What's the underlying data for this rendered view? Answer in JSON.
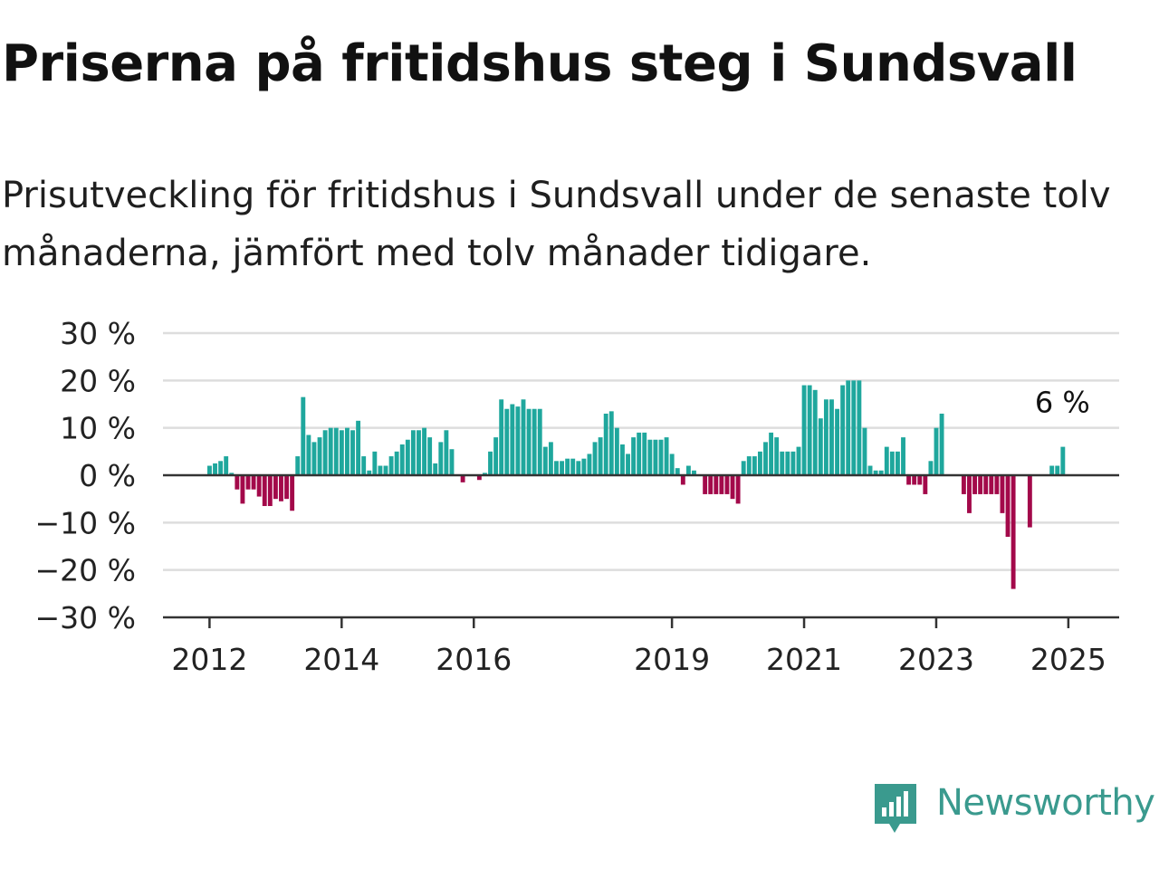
{
  "title": "Priserna på fritidshus steg i Sundsvall",
  "subtitle": "Prisutveckling för fritidshus i Sundsvall under de senaste tolv månaderna, jämfört med tolv månader tidigare.",
  "brand": {
    "name": "Newsworthy",
    "icon": "newsworthy-logo-icon",
    "color": "#3a9a8e"
  },
  "colors": {
    "positive": "#1fa79d",
    "negative": "#a3094a",
    "grid": "#dddddd",
    "axis": "#333333"
  },
  "chart_data": {
    "type": "bar",
    "title": "Priserna på fritidshus steg i Sundsvall",
    "xlabel": "",
    "ylabel": "",
    "ylim": [
      -30,
      30
    ],
    "grid": true,
    "y_ticks": [
      30,
      20,
      10,
      0,
      -10,
      -20,
      -30
    ],
    "y_tick_labels": [
      "30 %",
      "20 %",
      "10 %",
      "0 %",
      "−10 %",
      "−20 %",
      "−30 %"
    ],
    "x_ticks": [
      "2012",
      "2014",
      "2016",
      "2019",
      "2021",
      "2023",
      "2025"
    ],
    "x_tick_months": [
      "2012-01",
      "2014-01",
      "2016-01",
      "2019-01",
      "2021-01",
      "2023-01",
      "2025-01"
    ],
    "last_label": "6 %",
    "start_month": "2012-01",
    "values": [
      2,
      2.5,
      3,
      4,
      0.5,
      -3,
      -6,
      -3,
      -3,
      -4.5,
      -6.5,
      -6.5,
      -5,
      -5.5,
      -5,
      -7.5,
      4,
      16.5,
      8.5,
      7,
      8,
      9.5,
      10,
      10,
      9.5,
      10,
      9.5,
      11.5,
      4,
      1,
      5,
      2,
      2,
      4,
      5,
      6.5,
      7.5,
      9.5,
      9.5,
      10,
      8,
      2.5,
      7,
      9.5,
      5.5,
      0,
      -1.5,
      0,
      0,
      -1,
      0.5,
      5,
      8,
      16,
      14,
      15,
      14.5,
      16,
      14,
      14,
      14,
      6,
      7,
      3,
      3,
      3.5,
      3.5,
      3,
      3.5,
      4.5,
      7,
      8,
      13,
      13.5,
      10,
      6.5,
      4.5,
      8,
      9,
      9,
      7.5,
      7.5,
      7.5,
      8,
      4.5,
      1.5,
      -2,
      2,
      1,
      0,
      -4,
      -4,
      -4,
      -4,
      -4,
      -5,
      -6,
      3,
      4,
      4,
      5,
      7,
      9,
      8,
      5,
      5,
      5,
      6,
      19,
      19,
      18,
      12,
      16,
      16,
      14,
      19,
      20,
      20,
      20,
      10,
      2,
      1,
      1,
      6,
      5,
      5,
      8,
      -2,
      -2,
      -2,
      -4,
      3,
      10,
      13,
      0,
      0,
      0,
      -4,
      -8,
      -4,
      -4,
      -4,
      -4,
      -4,
      -8,
      -13,
      -24,
      0,
      0,
      -11,
      0,
      0,
      0,
      2,
      2,
      6
    ]
  }
}
